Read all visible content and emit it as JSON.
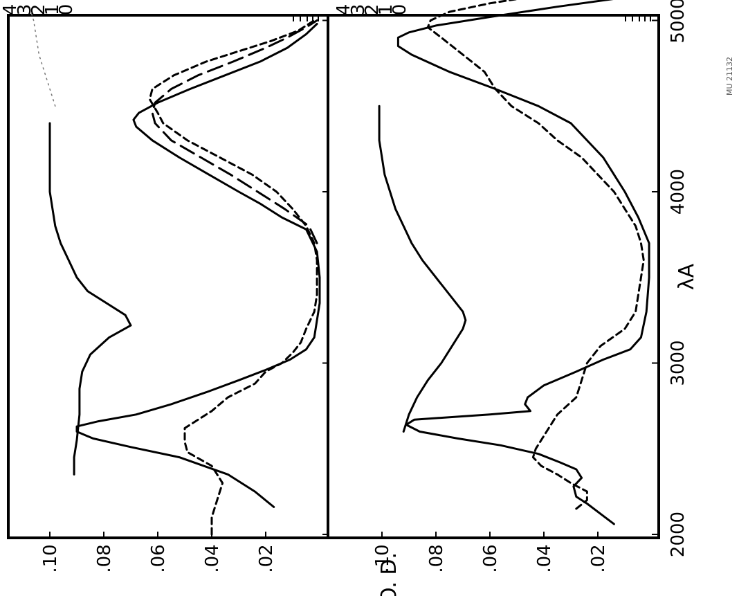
{
  "figure": {
    "y_axis_label": "O. D.",
    "x_axis_label": "λA",
    "code": "MU 21132"
  },
  "chart_data": [
    {
      "type": "line",
      "panel": "top",
      "x_ticks": [
        "2000",
        "3000",
        "4000",
        "5000"
      ],
      "y_ticks": [
        ".02",
        ".04",
        ".06",
        ".08",
        ".10"
      ],
      "right_ticks": [
        "0",
        "1",
        "2",
        "3",
        "4"
      ],
      "xlim": [
        2000,
        5300
      ],
      "ylim": [
        0,
        0.107
      ],
      "grid": false,
      "series": [
        {
          "style": "solid",
          "points": [
            [
              2160,
              0.017
            ],
            [
              2250,
              0.024
            ],
            [
              2350,
              0.034
            ],
            [
              2450,
              0.052
            ],
            [
              2510,
              0.07
            ],
            [
              2560,
              0.084
            ],
            [
              2600,
              0.09
            ],
            [
              2630,
              0.09
            ],
            [
              2660,
              0.082
            ],
            [
              2700,
              0.068
            ],
            [
              2760,
              0.055
            ],
            [
              2830,
              0.042
            ],
            [
              2900,
              0.03
            ],
            [
              2960,
              0.02
            ],
            [
              3020,
              0.011
            ],
            [
              3080,
              0.005
            ],
            [
              3150,
              0.002
            ],
            [
              3250,
              0.001
            ],
            [
              3350,
              0.0
            ],
            [
              3500,
              0.0
            ],
            [
              3650,
              0.001
            ],
            [
              3780,
              0.005
            ],
            [
              3850,
              0.014
            ],
            [
              3930,
              0.022
            ],
            [
              4000,
              0.03
            ],
            [
              4100,
              0.041
            ],
            [
              4200,
              0.052
            ],
            [
              4300,
              0.062
            ],
            [
              4380,
              0.068
            ],
            [
              4420,
              0.069
            ],
            [
              4460,
              0.067
            ],
            [
              4520,
              0.06
            ],
            [
              4600,
              0.048
            ],
            [
              4680,
              0.035
            ],
            [
              4760,
              0.022
            ],
            [
              4840,
              0.012
            ],
            [
              4920,
              0.005
            ],
            [
              4980,
              0.001
            ]
          ]
        },
        {
          "style": "long-dash",
          "points": [
            [
              3700,
              0.001
            ],
            [
              3800,
              0.004
            ],
            [
              3900,
              0.013
            ],
            [
              4000,
              0.023
            ],
            [
              4100,
              0.033
            ],
            [
              4200,
              0.044
            ],
            [
              4300,
              0.055
            ],
            [
              4400,
              0.061
            ],
            [
              4460,
              0.062
            ],
            [
              4520,
              0.061
            ],
            [
              4600,
              0.055
            ],
            [
              4680,
              0.045
            ],
            [
              4760,
              0.032
            ],
            [
              4840,
              0.02
            ],
            [
              4900,
              0.012
            ],
            [
              4960,
              0.005
            ],
            [
              5000,
              0.001
            ]
          ]
        },
        {
          "style": "short-dash",
          "points": [
            [
              2000,
              0.04
            ],
            [
              2100,
              0.04
            ],
            [
              2200,
              0.038
            ],
            [
              2300,
              0.036
            ],
            [
              2400,
              0.04
            ],
            [
              2480,
              0.049
            ],
            [
              2540,
              0.05
            ],
            [
              2620,
              0.05
            ],
            [
              2660,
              0.046
            ],
            [
              2720,
              0.04
            ],
            [
              2800,
              0.034
            ],
            [
              2880,
              0.024
            ],
            [
              2950,
              0.02
            ],
            [
              3000,
              0.014
            ],
            [
              3060,
              0.01
            ],
            [
              3120,
              0.007
            ],
            [
              3200,
              0.005
            ],
            [
              3300,
              0.002
            ],
            [
              3400,
              0.001
            ],
            [
              3500,
              0.001
            ],
            [
              3600,
              0.001
            ],
            [
              3700,
              0.002
            ],
            [
              3800,
              0.005
            ],
            [
              3900,
              0.01
            ],
            [
              4000,
              0.016
            ],
            [
              4100,
              0.025
            ],
            [
              4200,
              0.037
            ],
            [
              4300,
              0.049
            ],
            [
              4400,
              0.058
            ],
            [
              4460,
              0.06
            ],
            [
              4540,
              0.063
            ],
            [
              4600,
              0.062
            ],
            [
              4680,
              0.054
            ],
            [
              4760,
              0.042
            ],
            [
              4820,
              0.03
            ],
            [
              4880,
              0.018
            ],
            [
              4940,
              0.008
            ],
            [
              5000,
              0.002
            ]
          ]
        },
        {
          "style": "solid",
          "points": [
            [
              2350,
              0.091
            ],
            [
              2450,
              0.091
            ],
            [
              2550,
              0.09
            ],
            [
              2700,
              0.089
            ],
            [
              2850,
              0.089
            ],
            [
              2950,
              0.088
            ],
            [
              3050,
              0.085
            ],
            [
              3150,
              0.078
            ],
            [
              3220,
              0.07
            ],
            [
              3280,
              0.072
            ],
            [
              3350,
              0.079
            ],
            [
              3420,
              0.086
            ],
            [
              3500,
              0.09
            ],
            [
              3600,
              0.093
            ],
            [
              3700,
              0.096
            ],
            [
              3800,
              0.098
            ],
            [
              3900,
              0.099
            ],
            [
              4000,
              0.1
            ],
            [
              4200,
              0.1
            ],
            [
              4400,
              0.1
            ]
          ]
        },
        {
          "style": "dotted",
          "points": [
            [
              4500,
              0.098
            ],
            [
              4600,
              0.1
            ],
            [
              4700,
              0.102
            ],
            [
              4800,
              0.104
            ],
            [
              4900,
              0.105
            ],
            [
              5000,
              0.106
            ],
            [
              5050,
              0.107
            ]
          ]
        }
      ]
    },
    {
      "type": "line",
      "panel": "bottom",
      "x_ticks": [
        "2000",
        "3000",
        "4000",
        "5000"
      ],
      "y_ticks": [
        ".02",
        ".04",
        ".06",
        ".08",
        ".10"
      ],
      "right_ticks": [
        "0",
        "1",
        "2",
        "3",
        "4"
      ],
      "xlim": [
        2000,
        5300
      ],
      "ylim": [
        0,
        0.107
      ],
      "grid": false,
      "series": [
        {
          "style": "solid",
          "points": [
            [
              2060,
              0.014
            ],
            [
              2120,
              0.019
            ],
            [
              2180,
              0.024
            ],
            [
              2220,
              0.028
            ],
            [
              2280,
              0.029
            ],
            [
              2330,
              0.026
            ],
            [
              2380,
              0.028
            ],
            [
              2420,
              0.034
            ],
            [
              2470,
              0.042
            ],
            [
              2520,
              0.056
            ],
            [
              2560,
              0.072
            ],
            [
              2600,
              0.086
            ],
            [
              2640,
              0.091
            ],
            [
              2670,
              0.088
            ],
            [
              2700,
              0.06
            ],
            [
              2720,
              0.045
            ],
            [
              2760,
              0.047
            ],
            [
              2800,
              0.046
            ],
            [
              2870,
              0.04
            ],
            [
              2950,
              0.028
            ],
            [
              3020,
              0.018
            ],
            [
              3080,
              0.008
            ],
            [
              3150,
              0.004
            ],
            [
              3300,
              0.002
            ],
            [
              3500,
              0.001
            ],
            [
              3700,
              0.001
            ],
            [
              3850,
              0.005
            ],
            [
              4000,
              0.01
            ],
            [
              4200,
              0.018
            ],
            [
              4400,
              0.03
            ],
            [
              4500,
              0.042
            ],
            [
              4600,
              0.058
            ],
            [
              4700,
              0.075
            ],
            [
              4800,
              0.089
            ],
            [
              4850,
              0.094
            ],
            [
              4900,
              0.094
            ],
            [
              4930,
              0.09
            ],
            [
              4970,
              0.08
            ],
            [
              5020,
              0.06
            ],
            [
              5080,
              0.035
            ],
            [
              5130,
              0.012
            ],
            [
              5180,
              0.002
            ],
            [
              5250,
              0.0
            ]
          ]
        },
        {
          "style": "short-dash",
          "points": [
            [
              2150,
              0.028
            ],
            [
              2200,
              0.024
            ],
            [
              2250,
              0.024
            ],
            [
              2300,
              0.03
            ],
            [
              2350,
              0.035
            ],
            [
              2400,
              0.041
            ],
            [
              2450,
              0.044
            ],
            [
              2500,
              0.043
            ],
            [
              2600,
              0.039
            ],
            [
              2700,
              0.035
            ],
            [
              2800,
              0.028
            ],
            [
              2900,
              0.026
            ],
            [
              3000,
              0.024
            ],
            [
              3100,
              0.019
            ],
            [
              3200,
              0.01
            ],
            [
              3300,
              0.006
            ],
            [
              3400,
              0.005
            ],
            [
              3500,
              0.004
            ],
            [
              3600,
              0.003
            ],
            [
              3700,
              0.004
            ],
            [
              3800,
              0.006
            ],
            [
              3900,
              0.01
            ],
            [
              4000,
              0.014
            ],
            [
              4100,
              0.02
            ],
            [
              4200,
              0.026
            ],
            [
              4300,
              0.035
            ],
            [
              4400,
              0.042
            ],
            [
              4500,
              0.052
            ],
            [
              4600,
              0.058
            ],
            [
              4700,
              0.062
            ],
            [
              4800,
              0.07
            ],
            [
              4900,
              0.078
            ],
            [
              4960,
              0.083
            ],
            [
              5000,
              0.082
            ],
            [
              5050,
              0.075
            ],
            [
              5100,
              0.06
            ],
            [
              5150,
              0.04
            ],
            [
              5200,
              0.02
            ],
            [
              5260,
              0.005
            ],
            [
              5300,
              0.0
            ]
          ]
        },
        {
          "style": "solid",
          "points": [
            [
              2600,
              0.092
            ],
            [
              2700,
              0.09
            ],
            [
              2800,
              0.087
            ],
            [
              2900,
              0.083
            ],
            [
              3000,
              0.078
            ],
            [
              3100,
              0.074
            ],
            [
              3200,
              0.07
            ],
            [
              3250,
              0.069
            ],
            [
              3300,
              0.07
            ],
            [
              3400,
              0.075
            ],
            [
              3500,
              0.08
            ],
            [
              3600,
              0.085
            ],
            [
              3700,
              0.089
            ],
            [
              3800,
              0.092
            ],
            [
              3900,
              0.095
            ],
            [
              4000,
              0.097
            ],
            [
              4100,
              0.099
            ],
            [
              4200,
              0.1
            ],
            [
              4300,
              0.101
            ],
            [
              4400,
              0.101
            ],
            [
              4500,
              0.101
            ]
          ]
        }
      ]
    }
  ]
}
